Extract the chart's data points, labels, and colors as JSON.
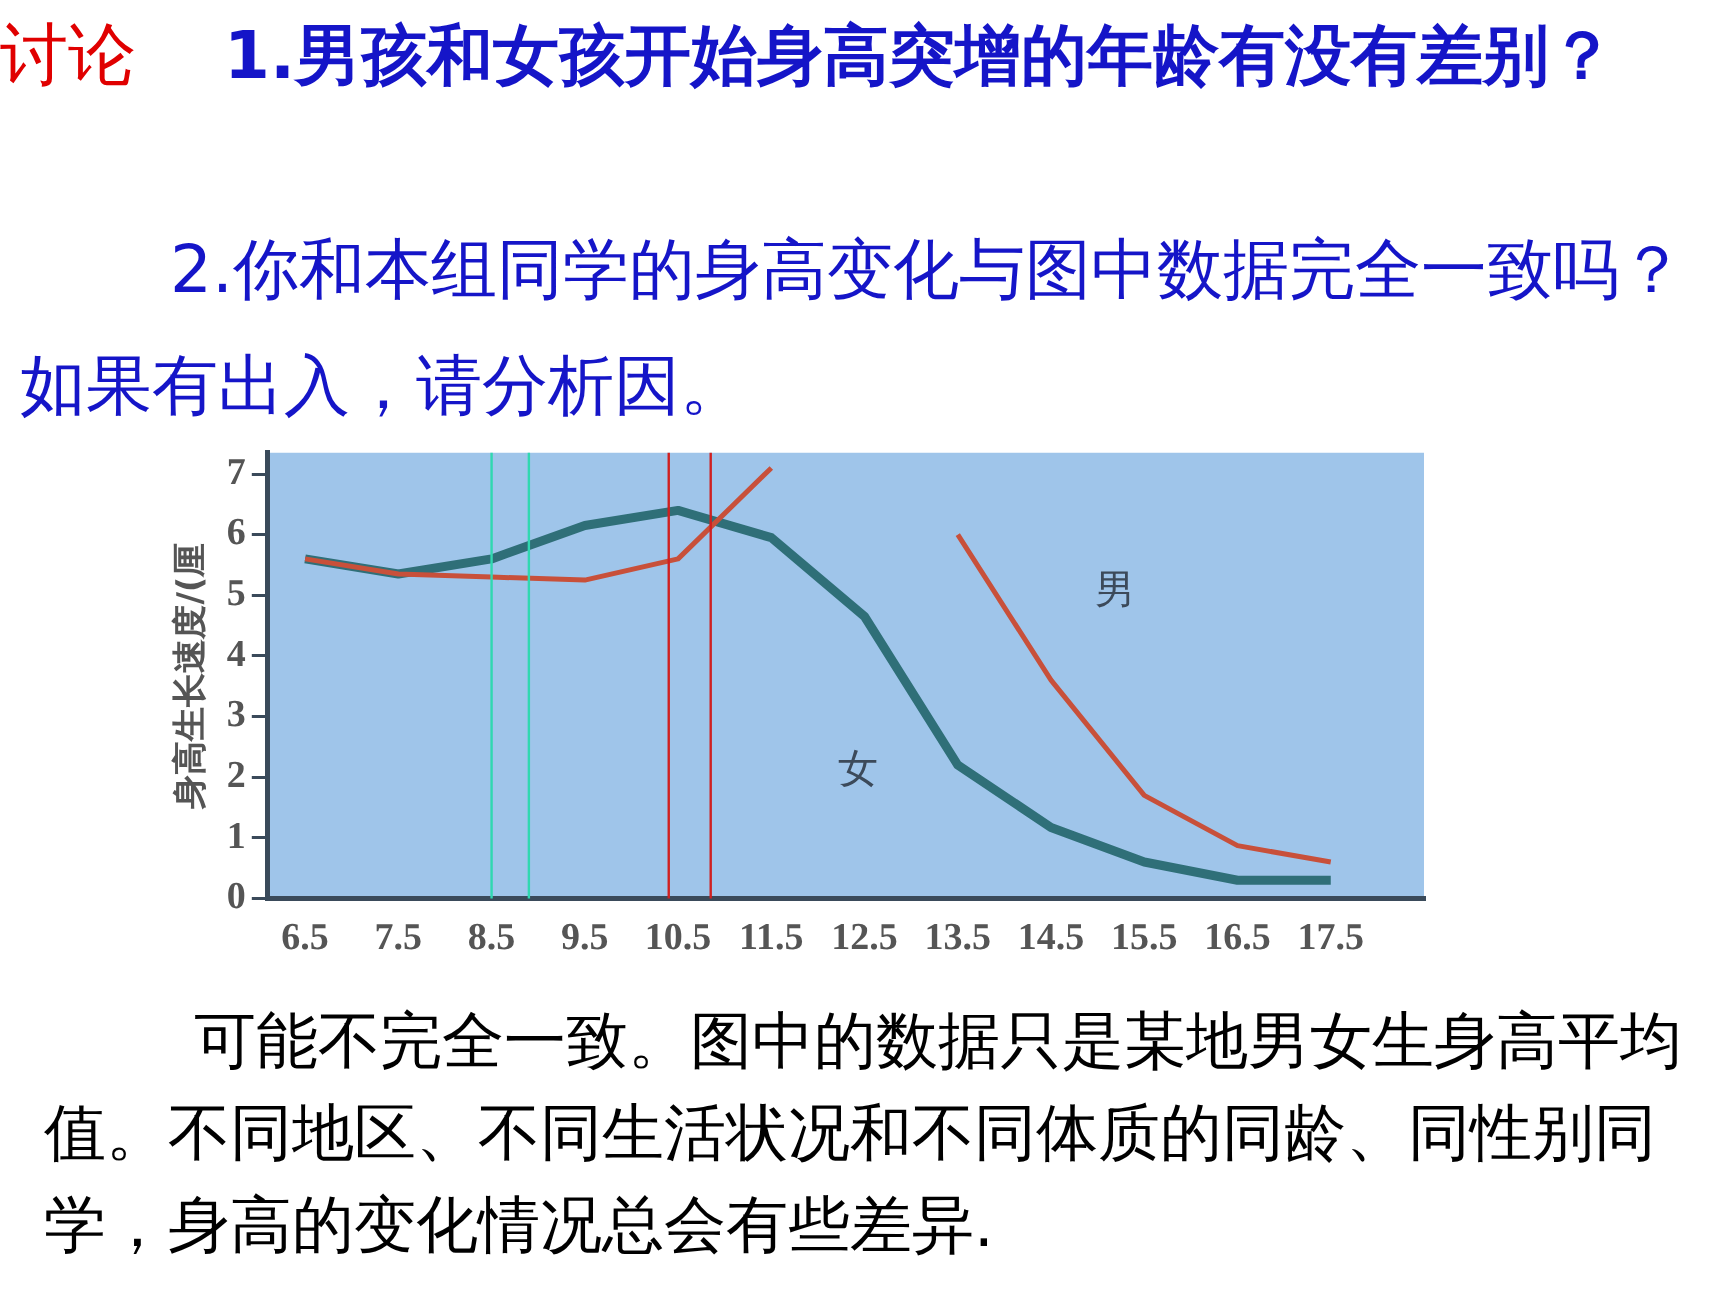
{
  "chart_data": {
    "type": "line",
    "title": "讨论",
    "ylabel": "身高生长速度/(厘",
    "x": [
      6.5,
      7.5,
      8.5,
      9.5,
      10.5,
      11.5,
      12.5,
      13.5,
      14.5,
      15.5,
      16.5,
      17.5
    ],
    "series": [
      {
        "name": "男",
        "color": "#c8503a",
        "values": [
          5.6,
          5.35,
          5.3,
          5.25,
          5.6,
          7.1,
          null,
          6.0,
          3.6,
          1.7,
          0.87,
          0.6
        ]
      },
      {
        "name": "女",
        "color": "#2f6f78",
        "values": [
          5.6,
          5.35,
          5.6,
          6.15,
          6.4,
          5.95,
          4.65,
          2.2,
          1.17,
          0.6,
          0.3,
          0.3
        ]
      }
    ],
    "xlim": [
      6.1,
      18.5
    ],
    "xticks": [
      6.5,
      7.5,
      8.5,
      9.5,
      10.5,
      11.5,
      12.5,
      13.5,
      14.5,
      15.5,
      16.5,
      17.5
    ],
    "ylim": [
      0,
      7.35
    ],
    "yticks": [
      0,
      1,
      2,
      3,
      4,
      5,
      6,
      7
    ],
    "grid": false,
    "legend": false,
    "marker": "none",
    "line_style": "solid",
    "ref_lines": [
      {
        "axis": "x",
        "value": 8.5,
        "color": "#30d8b0"
      },
      {
        "axis": "x",
        "value": 8.9,
        "color": "#30d8b0"
      },
      {
        "axis": "x",
        "value": 10.4,
        "color": "#d02020"
      },
      {
        "axis": "x",
        "value": 10.85,
        "color": "#d02020"
      }
    ],
    "annotations": [
      "1.男孩和女孩开始身高突增的年龄有没有差别？",
      "2.你和本组同学的身高变化与图中数据完全一致吗？如果有出入，请分析因。",
      "可能不完全一致。图中的数据只是某地男女生身高平均值。不同地区、不同生活状况和不同体质的同龄、同性别同学，身高的变化情况总会有些差异."
    ]
  }
}
